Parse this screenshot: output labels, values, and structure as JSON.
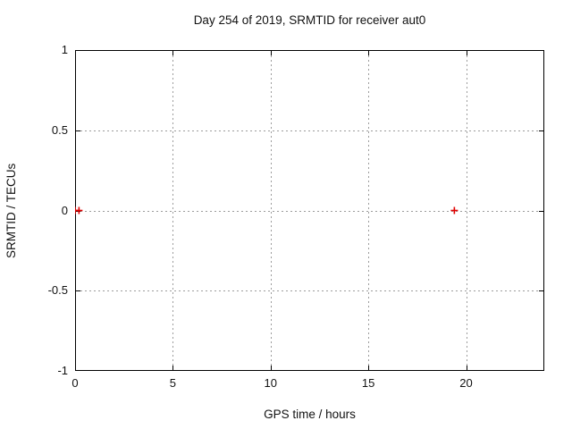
{
  "title": "Day 254 of 2019, SRMTID for receiver aut0",
  "chart_data": {
    "type": "scatter",
    "title": "Day 254 of 2019, SRMTID for receiver aut0",
    "xlabel": "GPS time / hours",
    "ylabel": "SRMTID / TECUs",
    "xlim": [
      0,
      24
    ],
    "ylim": [
      -1,
      1
    ],
    "xticks": [
      0,
      5,
      10,
      15,
      20
    ],
    "yticks": [
      -1,
      -0.5,
      0,
      0.5,
      1
    ],
    "grid": true,
    "grid_style": "dotted",
    "legend": "none",
    "series": [
      {
        "name": "SRMTID",
        "marker": "plus",
        "color": "#e00000",
        "points": [
          [
            0.0,
            0.0
          ],
          [
            0.2,
            0.0
          ],
          [
            19.4,
            0.0
          ]
        ]
      }
    ],
    "colors": {
      "background": "#ffffff",
      "axis": "#000000",
      "grid": "#9c9c9c",
      "text": "#111111",
      "marker": "#e00000"
    }
  }
}
